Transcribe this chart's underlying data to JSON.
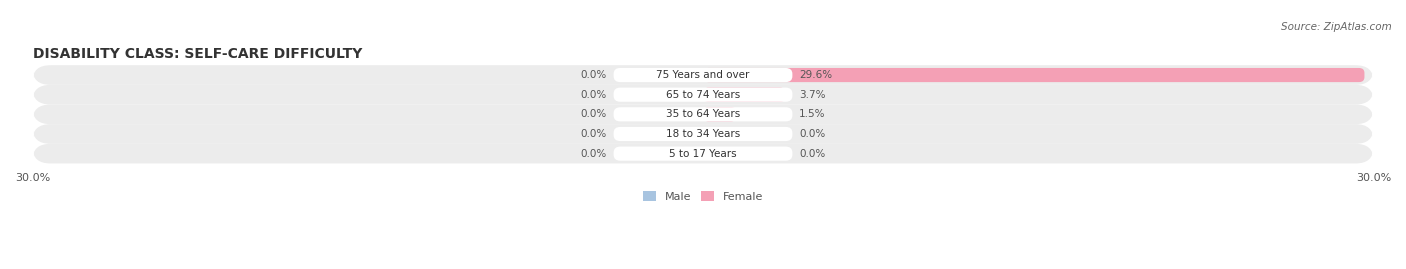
{
  "title": "DISABILITY CLASS: SELF-CARE DIFFICULTY",
  "source": "Source: ZipAtlas.com",
  "categories": [
    "5 to 17 Years",
    "18 to 34 Years",
    "35 to 64 Years",
    "65 to 74 Years",
    "75 Years and over"
  ],
  "male_values": [
    0.0,
    0.0,
    0.0,
    0.0,
    0.0
  ],
  "female_values": [
    0.0,
    0.0,
    1.5,
    3.7,
    29.6
  ],
  "x_min": -30.0,
  "x_max": 30.0,
  "male_color": "#a8c4e0",
  "female_color": "#f4a0b5",
  "bar_bg_color": "#e8e8e8",
  "row_bg_colors": [
    "#f0f0f0",
    "#e8e8e8"
  ],
  "title_fontsize": 10,
  "label_fontsize": 8,
  "tick_fontsize": 8,
  "x_tick_labels": [
    "-30.0%",
    "30.0%"
  ],
  "legend_labels": [
    "Male",
    "Female"
  ]
}
